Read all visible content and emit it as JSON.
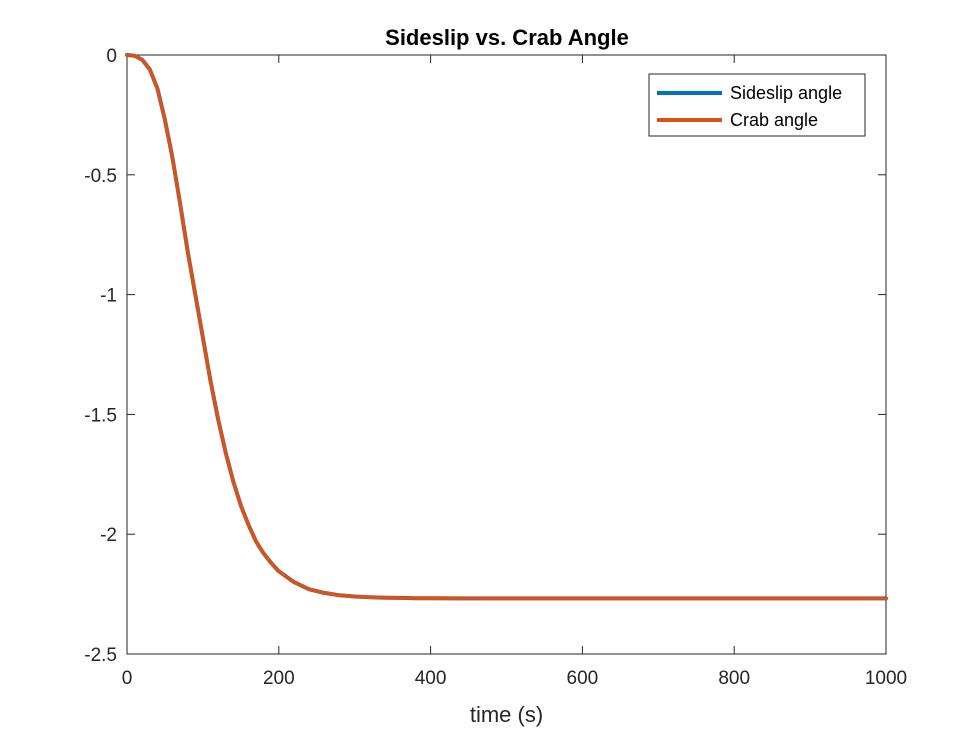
{
  "chart_data": {
    "type": "line",
    "title": "Sideslip vs. Crab Angle",
    "xlabel": "time (s)",
    "ylabel": "",
    "xlim": [
      0,
      1000
    ],
    "ylim": [
      -2.5,
      0
    ],
    "xticks": [
      0,
      200,
      400,
      600,
      800,
      1000
    ],
    "xtick_labels": [
      "0",
      "200",
      "400",
      "600",
      "800",
      "1000"
    ],
    "yticks": [
      0,
      -0.5,
      -1,
      -1.5,
      -2,
      -2.5
    ],
    "ytick_labels": [
      "0",
      "-0.5",
      "-1",
      "-1.5",
      "-2",
      "-2.5"
    ],
    "grid": false,
    "legend_position": "top-right",
    "x": [
      0,
      10,
      20,
      30,
      40,
      50,
      60,
      70,
      80,
      90,
      100,
      110,
      120,
      130,
      140,
      150,
      160,
      170,
      180,
      190,
      200,
      220,
      240,
      260,
      280,
      300,
      320,
      340,
      360,
      380,
      400,
      450,
      500,
      600,
      700,
      800,
      900,
      1000
    ],
    "series": [
      {
        "name": "Sideslip angle",
        "color": "#0072BD",
        "values": [
          0,
          -0.003,
          -0.02,
          -0.06,
          -0.14,
          -0.27,
          -0.43,
          -0.62,
          -0.82,
          -1.0,
          -1.18,
          -1.36,
          -1.52,
          -1.66,
          -1.78,
          -1.88,
          -1.96,
          -2.03,
          -2.08,
          -2.12,
          -2.155,
          -2.2,
          -2.23,
          -2.245,
          -2.255,
          -2.26,
          -2.263,
          -2.265,
          -2.266,
          -2.267,
          -2.267,
          -2.268,
          -2.268,
          -2.268,
          -2.268,
          -2.268,
          -2.268,
          -2.268
        ]
      },
      {
        "name": "Crab angle",
        "color": "#D95319",
        "values": [
          0,
          -0.003,
          -0.02,
          -0.06,
          -0.14,
          -0.27,
          -0.43,
          -0.62,
          -0.82,
          -1.0,
          -1.18,
          -1.36,
          -1.52,
          -1.66,
          -1.78,
          -1.88,
          -1.96,
          -2.03,
          -2.08,
          -2.12,
          -2.155,
          -2.2,
          -2.23,
          -2.245,
          -2.255,
          -2.26,
          -2.263,
          -2.265,
          -2.266,
          -2.267,
          -2.267,
          -2.268,
          -2.268,
          -2.268,
          -2.268,
          -2.268,
          -2.268,
          -2.268
        ]
      }
    ]
  }
}
